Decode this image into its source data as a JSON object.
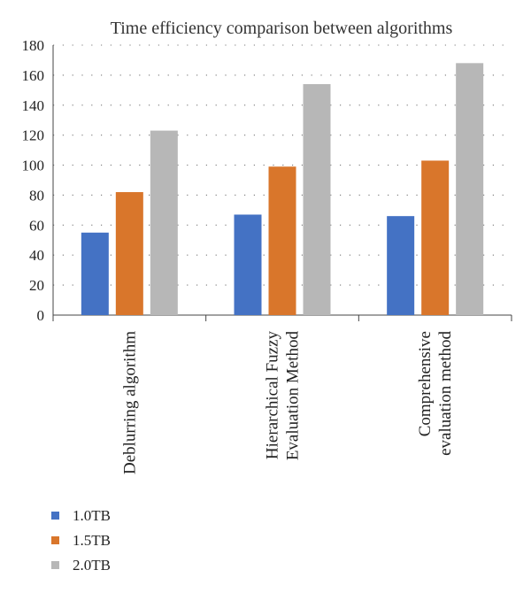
{
  "chart_data": {
    "type": "bar",
    "title": "Time efficiency comparison between algorithms",
    "categories": [
      [
        "Deblurring algorithm"
      ],
      [
        "Hierarchical Fuzzy",
        "Evaluation Method"
      ],
      [
        "Comprehensive",
        "evaluation method"
      ]
    ],
    "series": [
      {
        "name": "1.0TB",
        "color": "#4472c4",
        "values": [
          55,
          67,
          66
        ]
      },
      {
        "name": "1.5TB",
        "color": "#d9762b",
        "values": [
          82,
          99,
          103
        ]
      },
      {
        "name": "2.0TB",
        "color": "#b7b7b7",
        "values": [
          123,
          154,
          168
        ]
      }
    ],
    "ylim": [
      0,
      180
    ],
    "yticks": [
      "0",
      "20",
      "40",
      "60",
      "80",
      "100",
      "120",
      "140",
      "160",
      "180"
    ],
    "grid": true,
    "legend_position": "bottom-left"
  }
}
